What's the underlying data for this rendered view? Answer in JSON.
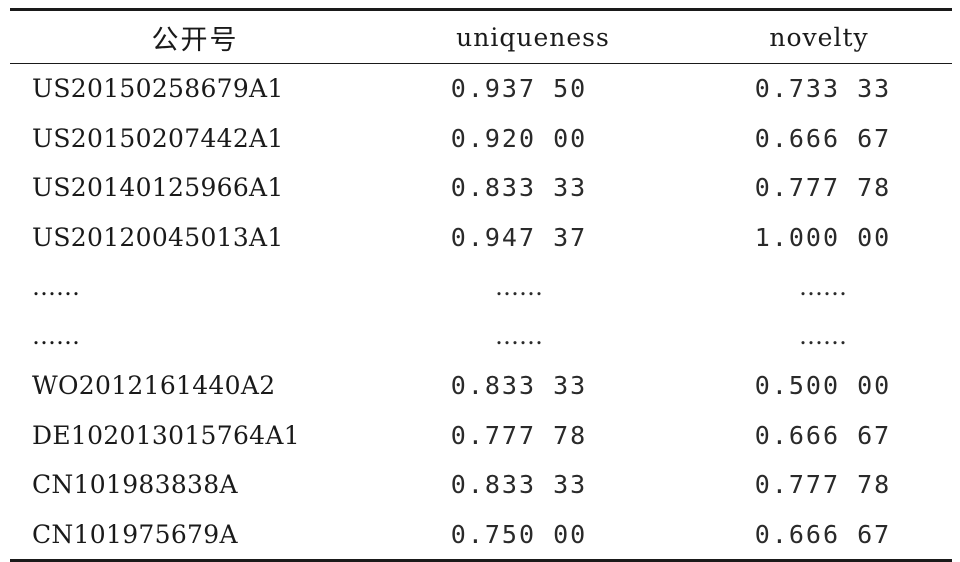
{
  "table": {
    "headers": {
      "id": "公开号",
      "uniqueness": "uniqueness",
      "novelty": "novelty"
    },
    "rows": [
      {
        "id": "US20150258679A1",
        "uniqueness": "0.937 50",
        "novelty": "0.733 33"
      },
      {
        "id": "US20150207442A1",
        "uniqueness": "0.920 00",
        "novelty": "0.666 67"
      },
      {
        "id": "US20140125966A1",
        "uniqueness": "0.833 33",
        "novelty": "0.777 78"
      },
      {
        "id": "US20120045013A1",
        "uniqueness": "0.947 37",
        "novelty": "1.000 00"
      },
      {
        "id": "……",
        "uniqueness": "……",
        "novelty": "……"
      },
      {
        "id": "……",
        "uniqueness": "……",
        "novelty": "……"
      },
      {
        "id": "WO2012161440A2",
        "uniqueness": "0.833 33",
        "novelty": "0.500 00"
      },
      {
        "id": "DE102013015764A1",
        "uniqueness": "0.777 78",
        "novelty": "0.666 67"
      },
      {
        "id": "CN101983838A",
        "uniqueness": "0.833 33",
        "novelty": "0.777 78"
      },
      {
        "id": "CN101975679A",
        "uniqueness": "0.750 00",
        "novelty": "0.666 67"
      }
    ]
  }
}
